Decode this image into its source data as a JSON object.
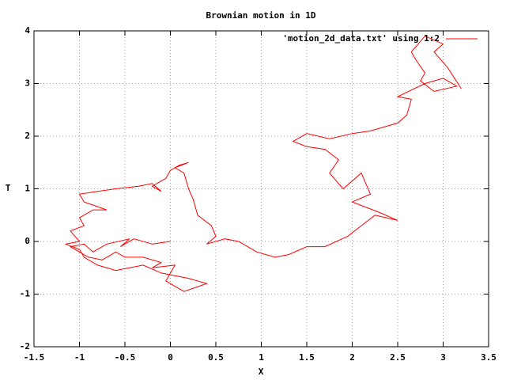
{
  "chart_data": {
    "type": "line",
    "title": "Brownian motion in 1D",
    "x_label": "X",
    "y_label": "T",
    "x": [
      0,
      -0.2,
      -0.4,
      -0.55,
      -0.45,
      -0.7,
      -0.85,
      -0.95,
      -1.1,
      -0.9,
      -0.75,
      -0.6,
      -0.5,
      -0.3,
      -0.1,
      -0.2,
      0.05,
      -0.05,
      0.15,
      0.4,
      0.2,
      -0.1,
      -0.3,
      -0.6,
      -0.8,
      -0.95,
      -1.0,
      -1.15,
      -1.0,
      -1.1,
      -0.95,
      -1.0,
      -0.85,
      -0.7,
      -0.95,
      -1.0,
      -0.8,
      -0.6,
      -0.35,
      -0.2,
      -0.1,
      -0.2,
      -0.05,
      0.0,
      0.1,
      0.2,
      0.05,
      0.15,
      0.2,
      0.25,
      0.3,
      0.45,
      0.5,
      0.4,
      0.6,
      0.75,
      0.85,
      0.95,
      1.15,
      1.3,
      1.5,
      1.7,
      1.95,
      2.1,
      2.25,
      2.5,
      2.3,
      2.0,
      2.2,
      2.1,
      1.9,
      1.75,
      1.85,
      1.7,
      1.5,
      1.35,
      1.5,
      1.75,
      2.0,
      2.2,
      2.5,
      2.6,
      2.65,
      2.5,
      2.8,
      3.0,
      3.15,
      2.9,
      2.75,
      2.8,
      2.7,
      2.65,
      2.8,
      3.0,
      2.9,
      3.05,
      3.2
    ],
    "series": [
      {
        "name": "'motion_2d_data.txt' using 1:2",
        "color": "#ff0000",
        "values": [
          0,
          -0.05,
          0.05,
          -0.1,
          0.05,
          -0.05,
          -0.2,
          -0.05,
          -0.1,
          -0.3,
          -0.35,
          -0.2,
          -0.3,
          -0.3,
          -0.4,
          -0.5,
          -0.45,
          -0.75,
          -0.95,
          -0.8,
          -0.7,
          -0.6,
          -0.45,
          -0.55,
          -0.45,
          -0.3,
          -0.15,
          -0.05,
          0.0,
          0.2,
          0.3,
          0.45,
          0.6,
          0.6,
          0.75,
          0.9,
          0.95,
          1.0,
          1.05,
          1.1,
          0.95,
          1.05,
          1.2,
          1.35,
          1.45,
          1.5,
          1.4,
          1.3,
          1.0,
          0.8,
          0.5,
          0.3,
          0.1,
          -0.05,
          0.05,
          0.0,
          -0.1,
          -0.2,
          -0.3,
          -0.25,
          -0.1,
          -0.1,
          0.1,
          0.3,
          0.5,
          0.4,
          0.55,
          0.75,
          0.9,
          1.3,
          1.0,
          1.3,
          1.55,
          1.75,
          1.8,
          1.9,
          2.05,
          1.95,
          2.05,
          2.1,
          2.25,
          2.4,
          2.7,
          2.75,
          3.0,
          3.1,
          2.95,
          2.85,
          3.05,
          3.2,
          3.45,
          3.6,
          3.9,
          3.75,
          3.6,
          3.3,
          2.9
        ]
      }
    ],
    "xlim": [
      -1.5,
      3.5
    ],
    "xticks": [
      -1.5,
      -1,
      -0.5,
      0,
      0.5,
      1,
      1.5,
      2,
      2.5,
      3,
      3.5
    ],
    "ylim": [
      -2,
      4
    ],
    "yticks": [
      -2,
      -1,
      0,
      1,
      2,
      3,
      4
    ],
    "grid": true,
    "legend": "top-right"
  }
}
